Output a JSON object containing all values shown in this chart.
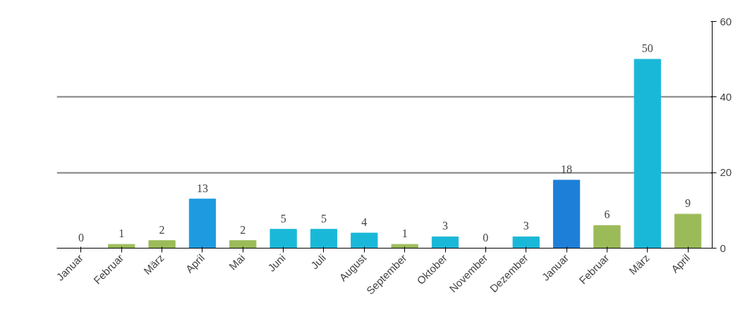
{
  "chart_data": {
    "type": "bar",
    "categories": [
      "Januar",
      "Februar",
      "März",
      "April",
      "Mai",
      "Juni",
      "Juli",
      "August",
      "September",
      "Oktober",
      "November",
      "Dezember",
      "Januar",
      "Februar",
      "März",
      "April"
    ],
    "values": [
      0,
      1,
      2,
      13,
      2,
      5,
      5,
      4,
      1,
      3,
      0,
      3,
      18,
      6,
      50,
      9
    ],
    "colors": [
      "#9bbb59",
      "#9bbb59",
      "#9bbb59",
      "#1e9be0",
      "#9bbb59",
      "#1ab8d8",
      "#1ab8d8",
      "#1ab8d8",
      "#9bbb59",
      "#1ab8d8",
      "#9bbb59",
      "#1ab8d8",
      "#1e7fd8",
      "#9bbb59",
      "#1ab8d8",
      "#9bbb59"
    ],
    "ylim": [
      0,
      60
    ],
    "yticks": [
      0,
      20,
      40,
      60
    ],
    "grid": "y",
    "data_labels": true
  }
}
